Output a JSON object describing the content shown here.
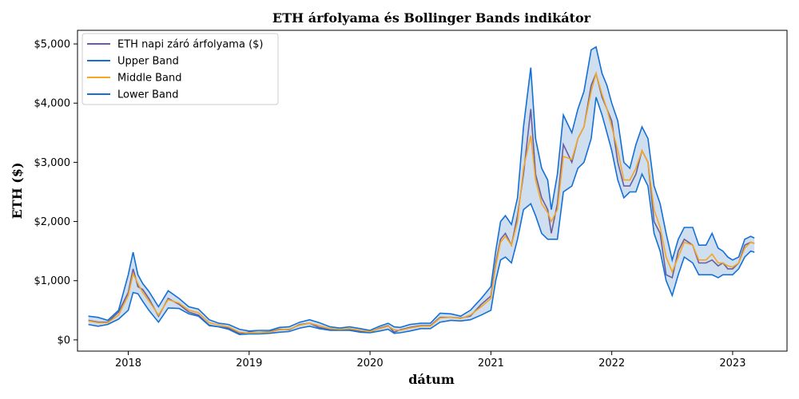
{
  "chart_data": {
    "type": "line",
    "title": "ETH árfolyama és Bollinger Bands indikátor",
    "xlabel": "dátum",
    "ylabel": "ETH ($)",
    "xlim": [
      2017.58,
      2023.45
    ],
    "ylim": [
      -190,
      5230
    ],
    "x_ticks": [
      2018,
      2019,
      2020,
      2021,
      2022,
      2023
    ],
    "x_tick_labels": [
      "2018",
      "2019",
      "2020",
      "2021",
      "2022",
      "2023"
    ],
    "y_ticks": [
      0,
      1000,
      2000,
      3000,
      4000,
      5000
    ],
    "y_tick_labels": [
      "$0",
      "$1,000",
      "$2,000",
      "$3,000",
      "$4,000",
      "$5,000"
    ],
    "legend_position": "upper-left",
    "grid": false,
    "colors": {
      "price": "#6a5f9e",
      "upper": "#1470d6",
      "middle": "#f5a623",
      "lower": "#1470d6",
      "band_fill": "#cfdff0"
    },
    "x": [
      2017.67,
      2017.75,
      2017.83,
      2017.92,
      2018.0,
      2018.04,
      2018.08,
      2018.12,
      2018.17,
      2018.25,
      2018.33,
      2018.42,
      2018.5,
      2018.58,
      2018.67,
      2018.75,
      2018.83,
      2018.92,
      2019.0,
      2019.08,
      2019.17,
      2019.25,
      2019.33,
      2019.42,
      2019.5,
      2019.58,
      2019.67,
      2019.75,
      2019.83,
      2019.92,
      2020.0,
      2020.08,
      2020.15,
      2020.2,
      2020.25,
      2020.33,
      2020.42,
      2020.5,
      2020.58,
      2020.67,
      2020.75,
      2020.83,
      2020.92,
      2021.0,
      2021.04,
      2021.08,
      2021.12,
      2021.17,
      2021.22,
      2021.27,
      2021.33,
      2021.37,
      2021.42,
      2021.47,
      2021.5,
      2021.55,
      2021.6,
      2021.67,
      2021.72,
      2021.77,
      2021.83,
      2021.87,
      2021.92,
      2021.96,
      2022.0,
      2022.05,
      2022.1,
      2022.15,
      2022.2,
      2022.25,
      2022.3,
      2022.35,
      2022.4,
      2022.45,
      2022.5,
      2022.55,
      2022.6,
      2022.67,
      2022.72,
      2022.78,
      2022.83,
      2022.88,
      2022.92,
      2022.96,
      2023.0,
      2023.05,
      2023.1,
      2023.15,
      2023.18
    ],
    "series": [
      {
        "name": "ETH napi záró árfolyama ($)",
        "key": "price",
        "values": [
          330,
          300,
          300,
          470,
          800,
          1200,
          900,
          850,
          700,
          400,
          700,
          600,
          470,
          420,
          250,
          220,
          200,
          110,
          130,
          130,
          140,
          180,
          170,
          260,
          280,
          210,
          170,
          180,
          180,
          140,
          130,
          200,
          240,
          130,
          170,
          210,
          240,
          240,
          380,
          380,
          370,
          400,
          600,
          740,
          1300,
          1700,
          1800,
          1600,
          2100,
          2800,
          3900,
          2800,
          2400,
          2200,
          1800,
          2300,
          3300,
          3000,
          3400,
          3600,
          4300,
          4500,
          4100,
          3900,
          3700,
          3000,
          2600,
          2600,
          2800,
          3200,
          3000,
          2000,
          1800,
          1100,
          1050,
          1500,
          1700,
          1600,
          1300,
          1300,
          1350,
          1250,
          1300,
          1200,
          1200,
          1300,
          1600,
          1650,
          1630
        ]
      },
      {
        "name": "Upper Band",
        "key": "upper",
        "values": [
          400,
          380,
          330,
          500,
          1100,
          1480,
          1100,
          950,
          820,
          560,
          830,
          700,
          560,
          520,
          340,
          280,
          260,
          180,
          150,
          160,
          160,
          210,
          220,
          300,
          340,
          290,
          220,
          200,
          220,
          190,
          160,
          230,
          280,
          220,
          210,
          260,
          280,
          280,
          450,
          440,
          400,
          500,
          700,
          900,
          1500,
          2000,
          2100,
          1950,
          2400,
          3600,
          4600,
          3400,
          2900,
          2700,
          2200,
          2800,
          3800,
          3500,
          3900,
          4200,
          4900,
          4950,
          4500,
          4300,
          4000,
          3700,
          3000,
          2900,
          3300,
          3600,
          3400,
          2600,
          2300,
          1800,
          1350,
          1700,
          1900,
          1900,
          1600,
          1600,
          1800,
          1550,
          1500,
          1400,
          1350,
          1400,
          1700,
          1750,
          1720
        ]
      },
      {
        "name": "Middle Band",
        "key": "middle",
        "values": [
          320,
          290,
          290,
          420,
          750,
          1120,
          950,
          800,
          660,
          420,
          680,
          620,
          500,
          460,
          290,
          250,
          220,
          130,
          120,
          130,
          130,
          170,
          180,
          250,
          280,
          240,
          190,
          180,
          190,
          160,
          140,
          190,
          230,
          170,
          160,
          200,
          230,
          230,
          370,
          380,
          360,
          420,
          560,
          700,
          1250,
          1650,
          1750,
          1600,
          2000,
          2900,
          3450,
          2700,
          2300,
          2150,
          2000,
          2200,
          3100,
          3050,
          3400,
          3600,
          4200,
          4500,
          4150,
          3900,
          3600,
          3200,
          2700,
          2700,
          2900,
          3200,
          3000,
          2200,
          1900,
          1400,
          1150,
          1400,
          1650,
          1600,
          1350,
          1350,
          1450,
          1300,
          1300,
          1250,
          1230,
          1300,
          1550,
          1650,
          1630
        ]
      },
      {
        "name": "Lower Band",
        "key": "lower",
        "values": [
          260,
          230,
          260,
          350,
          500,
          800,
          780,
          650,
          500,
          300,
          540,
          530,
          440,
          400,
          240,
          220,
          180,
          90,
          100,
          100,
          110,
          130,
          140,
          200,
          230,
          190,
          160,
          160,
          160,
          130,
          120,
          150,
          180,
          110,
          120,
          150,
          190,
          190,
          300,
          330,
          320,
          340,
          420,
          500,
          1000,
          1350,
          1400,
          1300,
          1700,
          2200,
          2300,
          2100,
          1800,
          1700,
          1700,
          1700,
          2500,
          2600,
          2900,
          3000,
          3400,
          4100,
          3800,
          3500,
          3200,
          2700,
          2400,
          2500,
          2500,
          2800,
          2600,
          1800,
          1500,
          1000,
          750,
          1100,
          1400,
          1300,
          1100,
          1100,
          1100,
          1050,
          1100,
          1100,
          1100,
          1200,
          1400,
          1500,
          1480
        ]
      }
    ]
  }
}
